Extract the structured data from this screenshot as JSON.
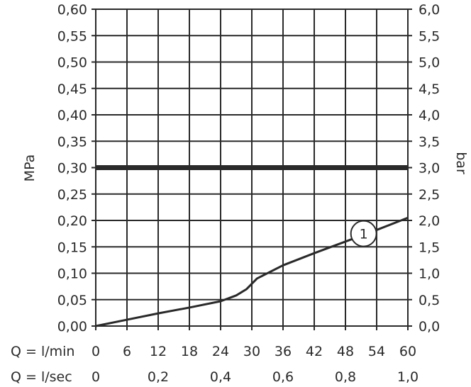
{
  "chart_data": {
    "type": "line",
    "xlabel_rows": [
      {
        "prefix": "Q = l/min",
        "ticks": [
          "0",
          "6",
          "12",
          "18",
          "24",
          "30",
          "36",
          "42",
          "48",
          "54",
          "60"
        ],
        "values": [
          0,
          6,
          12,
          18,
          24,
          30,
          36,
          42,
          48,
          54,
          60
        ]
      },
      {
        "prefix": "Q = l/sec",
        "ticks": [
          "0",
          "0,2",
          "0,4",
          "0,6",
          "0,8",
          "1,0"
        ],
        "values": [
          0,
          0.2,
          0.4,
          0.6,
          0.8,
          1.0
        ]
      }
    ],
    "xlim": [
      0,
      60
    ],
    "ylabel_left": "MPa",
    "ylabel_right": "bar",
    "ylim": [
      0,
      0.6
    ],
    "y_ticks_left": [
      "0,00",
      "0,05",
      "0,10",
      "0,15",
      "0,20",
      "0,25",
      "0,30",
      "0,35",
      "0,40",
      "0,45",
      "0,50",
      "0,55",
      "0,60"
    ],
    "y_ticks_right": [
      "0,0",
      "0,5",
      "1,0",
      "1,5",
      "2,0",
      "2,5",
      "3,0",
      "3,5",
      "4,0",
      "4,5",
      "5,0",
      "5,5",
      "6,0"
    ],
    "grid": true,
    "reference_line": {
      "y": 0.3
    },
    "series": [
      {
        "label": "1",
        "label_at": {
          "x": 51.5,
          "y": 0.175
        },
        "x": [
          0,
          6,
          12,
          18,
          24,
          27,
          29,
          31,
          36,
          42,
          48,
          54,
          60
        ],
        "values": [
          0,
          0.012,
          0.024,
          0.035,
          0.047,
          0.058,
          0.07,
          0.09,
          0.115,
          0.138,
          0.16,
          0.182,
          0.205
        ]
      }
    ]
  }
}
